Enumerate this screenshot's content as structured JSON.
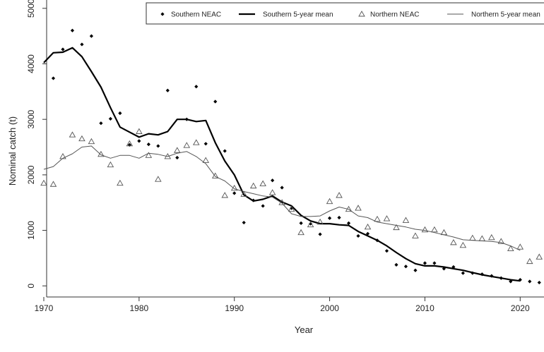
{
  "chart_data": {
    "type": "line",
    "xlabel": "Year",
    "ylabel": "Nominal catch (t)",
    "xlim": [
      1970,
      2022.5
    ],
    "ylim": [
      -200,
      5150
    ],
    "xticks": [
      1970,
      1980,
      1990,
      2000,
      2010,
      2020
    ],
    "yticks": [
      0,
      1000,
      2000,
      3000,
      4000,
      5000
    ],
    "legend_position": "top-right",
    "series": [
      {
        "name": "Southern NEAC",
        "style": "points-filled-diamond",
        "color": "#000000",
        "x": [
          1971,
          1972,
          1973,
          1974,
          1975,
          1976,
          1977,
          1978,
          1979,
          1980,
          1981,
          1982,
          1983,
          1984,
          1985,
          1986,
          1987,
          1988,
          1989,
          1990,
          1991,
          1992,
          1993,
          1994,
          1995,
          1996,
          1997,
          1998,
          1999,
          2000,
          2001,
          2002,
          2003,
          2004,
          2005,
          2006,
          2007,
          2008,
          2009,
          2010,
          2011,
          2012,
          2013,
          2014,
          2015,
          2016,
          2017,
          2018,
          2019,
          2020,
          2021,
          2022
        ],
        "values": [
          3740,
          4260,
          4600,
          4350,
          4500,
          2930,
          3010,
          3110,
          2540,
          2610,
          2550,
          2520,
          3520,
          2310,
          3000,
          3590,
          2560,
          3320,
          2430,
          1670,
          1140,
          1540,
          1440,
          1900,
          1770,
          1400,
          1130,
          1120,
          930,
          1220,
          1230,
          1130,
          900,
          940,
          820,
          630,
          380,
          350,
          280,
          410,
          410,
          310,
          340,
          230,
          230,
          210,
          180,
          140,
          80,
          110,
          80,
          60
        ]
      },
      {
        "name": "Southern 5-year mean",
        "style": "line-thick",
        "color": "#000000",
        "x": [
          1970,
          1971,
          1972,
          1973,
          1974,
          1975,
          1976,
          1977,
          1978,
          1979,
          1980,
          1981,
          1982,
          1983,
          1984,
          1985,
          1986,
          1987,
          1988,
          1989,
          1990,
          1991,
          1992,
          1993,
          1994,
          1995,
          1996,
          1997,
          1998,
          1999,
          2000,
          2001,
          2002,
          2003,
          2004,
          2005,
          2006,
          2007,
          2008,
          2009,
          2010,
          2011,
          2012,
          2013,
          2014,
          2015,
          2016,
          2017,
          2018,
          2019,
          2020
        ],
        "values": [
          4020,
          4200,
          4210,
          4290,
          4130,
          3860,
          3580,
          3210,
          2860,
          2770,
          2680,
          2740,
          2720,
          2780,
          3000,
          3000,
          2960,
          2980,
          2580,
          2250,
          2000,
          1640,
          1530,
          1560,
          1620,
          1510,
          1440,
          1270,
          1170,
          1120,
          1120,
          1100,
          1090,
          980,
          900,
          820,
          720,
          600,
          490,
          400,
          360,
          360,
          340,
          310,
          280,
          240,
          200,
          170,
          140,
          110,
          90
        ]
      },
      {
        "name": "Northern NEAC",
        "style": "points-open-triangle",
        "color": "#555555",
        "x": [
          1970,
          1971,
          1972,
          1973,
          1974,
          1975,
          1976,
          1977,
          1978,
          1979,
          1980,
          1981,
          1982,
          1983,
          1984,
          1985,
          1986,
          1987,
          1988,
          1989,
          1990,
          1991,
          1992,
          1993,
          1994,
          1995,
          1996,
          1997,
          1998,
          1999,
          2000,
          2001,
          2002,
          2003,
          2004,
          2005,
          2006,
          2007,
          2008,
          2009,
          2010,
          2011,
          2012,
          2013,
          2014,
          2015,
          2016,
          2017,
          2018,
          2019,
          2020,
          2021,
          2022
        ],
        "values": [
          1850,
          1830,
          2330,
          2720,
          2650,
          2600,
          2370,
          2180,
          1850,
          2560,
          2780,
          2350,
          1920,
          2330,
          2440,
          2530,
          2580,
          2260,
          1980,
          1630,
          1760,
          1650,
          1800,
          1840,
          1680,
          1500,
          1380,
          960,
          1100,
          1150,
          1520,
          1630,
          1380,
          1400,
          1060,
          1200,
          1210,
          1050,
          1180,
          900,
          1010,
          1010,
          960,
          780,
          730,
          860,
          850,
          870,
          800,
          670,
          700,
          440,
          520
        ]
      },
      {
        "name": "Northern 5-year mean",
        "style": "line-thin",
        "color": "#555555",
        "x": [
          1970,
          1971,
          1972,
          1973,
          1974,
          1975,
          1976,
          1977,
          1978,
          1979,
          1980,
          1981,
          1982,
          1983,
          1984,
          1985,
          1986,
          1987,
          1988,
          1989,
          1990,
          1991,
          1992,
          1993,
          1994,
          1995,
          1996,
          1997,
          1998,
          1999,
          2000,
          2001,
          2002,
          2003,
          2004,
          2005,
          2006,
          2007,
          2008,
          2009,
          2010,
          2011,
          2012,
          2013,
          2014,
          2015,
          2016,
          2017,
          2018,
          2019,
          2020
        ],
        "values": [
          2100,
          2150,
          2300,
          2380,
          2500,
          2520,
          2360,
          2300,
          2350,
          2350,
          2300,
          2390,
          2370,
          2330,
          2390,
          2420,
          2330,
          2200,
          1970,
          1890,
          1750,
          1700,
          1660,
          1620,
          1600,
          1490,
          1300,
          1250,
          1250,
          1260,
          1350,
          1420,
          1380,
          1260,
          1230,
          1150,
          1120,
          1090,
          1060,
          1020,
          1000,
          960,
          920,
          880,
          830,
          820,
          810,
          800,
          780,
          720,
          640
        ]
      }
    ]
  }
}
